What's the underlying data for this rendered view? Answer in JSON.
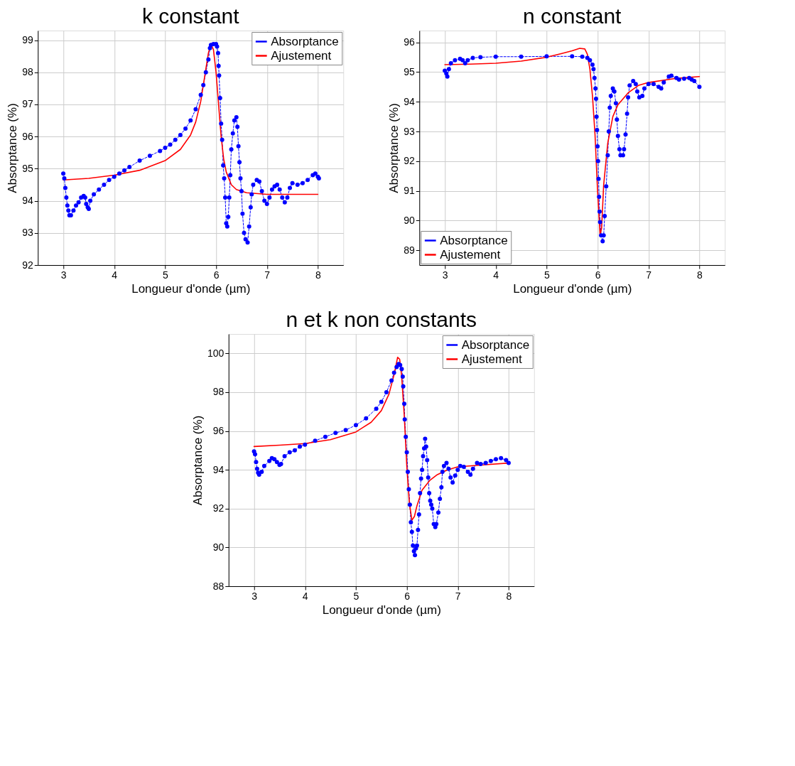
{
  "chart_data": [
    {
      "type": "line",
      "title": "k constant",
      "xlabel": "Longueur d'onde (µm)",
      "ylabel": "Absorptance (%)",
      "xlim": [
        2.5,
        8.5
      ],
      "xticks": [
        3,
        4,
        5,
        6,
        7,
        8
      ],
      "ylim": [
        92,
        99.3
      ],
      "yticks": [
        92,
        93,
        94,
        95,
        96,
        97,
        98,
        99
      ],
      "grid": true,
      "legend": "top right",
      "series": [
        {
          "name": "Absorptance",
          "color": "#0000ff",
          "marker": "circle",
          "line_style": "dashed",
          "x": [
            3.0,
            3.02,
            3.04,
            3.06,
            3.08,
            3.1,
            3.12,
            3.15,
            3.2,
            3.25,
            3.3,
            3.35,
            3.4,
            3.43,
            3.45,
            3.48,
            3.5,
            3.53,
            3.6,
            3.7,
            3.8,
            3.9,
            4.0,
            4.1,
            4.2,
            4.3,
            4.5,
            4.7,
            4.9,
            5.0,
            5.1,
            5.2,
            5.3,
            5.4,
            5.5,
            5.6,
            5.7,
            5.75,
            5.8,
            5.85,
            5.88,
            5.9,
            5.95,
            6.0,
            6.02,
            6.04,
            6.05,
            6.06,
            6.08,
            6.1,
            6.12,
            6.14,
            6.16,
            6.18,
            6.2,
            6.22,
            6.24,
            6.26,
            6.28,
            6.3,
            6.33,
            6.36,
            6.4,
            6.42,
            6.44,
            6.46,
            6.48,
            6.5,
            6.52,
            6.55,
            6.58,
            6.62,
            6.65,
            6.68,
            6.7,
            6.73,
            6.8,
            6.85,
            6.9,
            6.95,
            7.0,
            7.05,
            7.1,
            7.15,
            7.2,
            7.25,
            7.3,
            7.35,
            7.4,
            7.45,
            7.5,
            7.6,
            7.7,
            7.8,
            7.9,
            7.95,
            8.0,
            8.02
          ],
          "values": [
            94.85,
            94.7,
            94.4,
            94.1,
            93.85,
            93.7,
            93.55,
            93.55,
            93.7,
            93.85,
            93.95,
            94.1,
            94.15,
            94.1,
            93.9,
            93.8,
            93.75,
            94.0,
            94.2,
            94.35,
            94.5,
            94.65,
            94.75,
            94.85,
            94.95,
            95.05,
            95.25,
            95.4,
            95.55,
            95.65,
            95.75,
            95.9,
            96.05,
            96.25,
            96.5,
            96.85,
            97.3,
            97.6,
            98.0,
            98.4,
            98.75,
            98.85,
            98.88,
            98.88,
            98.8,
            98.6,
            98.2,
            97.9,
            97.2,
            96.4,
            95.9,
            95.1,
            94.7,
            94.1,
            93.3,
            93.2,
            93.5,
            94.1,
            94.8,
            95.6,
            96.1,
            96.5,
            96.6,
            96.3,
            95.7,
            95.2,
            94.7,
            94.3,
            93.6,
            93.0,
            92.8,
            92.7,
            93.2,
            93.8,
            94.2,
            94.5,
            94.65,
            94.6,
            94.3,
            94.0,
            93.9,
            94.1,
            94.35,
            94.45,
            94.5,
            94.35,
            94.1,
            93.95,
            94.1,
            94.4,
            94.55,
            94.5,
            94.55,
            94.65,
            94.8,
            94.85,
            94.75,
            94.7
          ]
        },
        {
          "name": "Ajustement",
          "color": "#ff0000",
          "marker": "none",
          "line_style": "solid",
          "x": [
            3,
            3.5,
            4,
            4.5,
            5,
            5.3,
            5.5,
            5.6,
            5.7,
            5.8,
            5.85,
            5.9,
            5.95,
            6.0,
            6.05,
            6.1,
            6.15,
            6.2,
            6.3,
            6.4,
            6.6,
            7.0,
            7.5,
            8.0
          ],
          "values": [
            94.65,
            94.7,
            94.8,
            94.95,
            95.25,
            95.6,
            96.05,
            96.45,
            97.1,
            98.1,
            98.6,
            98.88,
            98.7,
            98.0,
            97.0,
            96.0,
            95.3,
            94.9,
            94.5,
            94.35,
            94.25,
            94.2,
            94.2,
            94.2
          ]
        }
      ]
    },
    {
      "type": "line",
      "title": "n constant",
      "xlabel": "Longueur d'onde (µm)",
      "ylabel": "Absorptance (%)",
      "xlim": [
        2.5,
        8.5
      ],
      "xticks": [
        3,
        4,
        5,
        6,
        7,
        8
      ],
      "ylim": [
        88.5,
        96.4
      ],
      "yticks": [
        89,
        90,
        91,
        92,
        93,
        94,
        95,
        96
      ],
      "grid": true,
      "legend": "bottom left",
      "series": [
        {
          "name": "Absorptance",
          "color": "#0000ff",
          "marker": "circle",
          "line_style": "dashed",
          "x": [
            3.0,
            3.03,
            3.05,
            3.08,
            3.12,
            3.2,
            3.3,
            3.35,
            3.4,
            3.45,
            3.55,
            3.7,
            4,
            4.5,
            5,
            5.5,
            5.7,
            5.8,
            5.85,
            5.9,
            5.92,
            5.94,
            5.96,
            5.97,
            5.98,
            5.99,
            6.0,
            6.01,
            6.02,
            6.03,
            6.04,
            6.05,
            6.07,
            6.1,
            6.12,
            6.14,
            6.17,
            6.2,
            6.22,
            6.24,
            6.26,
            6.3,
            6.33,
            6.36,
            6.38,
            6.4,
            6.43,
            6.45,
            6.5,
            6.52,
            6.55,
            6.58,
            6.6,
            6.63,
            6.7,
            6.75,
            6.78,
            6.82,
            6.88,
            6.92,
            7.0,
            7.1,
            7.2,
            7.25,
            7.3,
            7.4,
            7.45,
            7.55,
            7.6,
            7.7,
            7.8,
            7.85,
            7.9,
            8.0
          ],
          "values": [
            95.05,
            94.95,
            94.85,
            95.1,
            95.3,
            95.4,
            95.45,
            95.4,
            95.3,
            95.4,
            95.48,
            95.5,
            95.52,
            95.52,
            95.53,
            95.53,
            95.52,
            95.48,
            95.4,
            95.25,
            95.1,
            94.8,
            94.45,
            94.1,
            93.5,
            93.05,
            92.5,
            92.0,
            91.4,
            90.8,
            90.3,
            89.95,
            89.5,
            89.3,
            89.5,
            90.15,
            91.15,
            92.2,
            93.0,
            93.8,
            94.2,
            94.45,
            94.35,
            93.95,
            93.4,
            92.85,
            92.4,
            92.2,
            92.2,
            92.4,
            92.9,
            93.6,
            94.15,
            94.55,
            94.7,
            94.6,
            94.35,
            94.15,
            94.2,
            94.45,
            94.6,
            94.6,
            94.5,
            94.45,
            94.65,
            94.85,
            94.88,
            94.8,
            94.75,
            94.78,
            94.8,
            94.75,
            94.7,
            94.5
          ]
        },
        {
          "name": "Ajustement",
          "color": "#ff0000",
          "marker": "none",
          "line_style": "solid",
          "x": [
            3,
            3.5,
            4,
            4.5,
            5,
            5.3,
            5.5,
            5.65,
            5.75,
            5.8,
            5.85,
            5.9,
            5.95,
            6.0,
            6.05,
            6.08,
            6.12,
            6.2,
            6.3,
            6.4,
            6.6,
            6.8,
            7.0,
            7.5,
            8.0
          ],
          "values": [
            95.25,
            95.27,
            95.3,
            95.37,
            95.5,
            95.63,
            95.72,
            95.8,
            95.78,
            95.6,
            95.1,
            94.2,
            92.9,
            91.0,
            89.5,
            89.75,
            91.2,
            92.6,
            93.5,
            93.9,
            94.3,
            94.55,
            94.65,
            94.78,
            94.85
          ]
        }
      ]
    },
    {
      "type": "line",
      "title": "n et k non constants",
      "xlabel": "Longueur d'onde (µm)",
      "ylabel": "Absorptance (%)",
      "xlim": [
        2.5,
        8.5
      ],
      "xticks": [
        3,
        4,
        5,
        6,
        7,
        8
      ],
      "ylim": [
        88,
        101
      ],
      "yticks": [
        88,
        90,
        92,
        94,
        96,
        98,
        100
      ],
      "grid": true,
      "legend": "top right",
      "series": [
        {
          "name": "Absorptance",
          "color": "#0000ff",
          "marker": "circle",
          "line_style": "dashed",
          "x": [
            3.0,
            3.02,
            3.04,
            3.06,
            3.08,
            3.1,
            3.15,
            3.2,
            3.3,
            3.35,
            3.4,
            3.45,
            3.5,
            3.53,
            3.6,
            3.7,
            3.8,
            3.9,
            4.0,
            4.2,
            4.4,
            4.6,
            4.8,
            5.0,
            5.2,
            5.4,
            5.5,
            5.6,
            5.7,
            5.75,
            5.8,
            5.84,
            5.87,
            5.9,
            5.92,
            5.93,
            5.95,
            5.96,
            5.98,
            6.0,
            6.02,
            6.04,
            6.06,
            6.08,
            6.1,
            6.12,
            6.14,
            6.16,
            6.18,
            6.2,
            6.22,
            6.24,
            6.26,
            6.28,
            6.3,
            6.32,
            6.34,
            6.36,
            6.38,
            6.4,
            6.42,
            6.44,
            6.46,
            6.48,
            6.5,
            6.53,
            6.56,
            6.58,
            6.62,
            6.65,
            6.68,
            6.7,
            6.73,
            6.78,
            6.82,
            6.86,
            6.9,
            6.95,
            7.0,
            7.05,
            7.12,
            7.2,
            7.25,
            7.3,
            7.38,
            7.45,
            7.55,
            7.65,
            7.75,
            7.85,
            7.95,
            8.0
          ],
          "values": [
            94.95,
            94.8,
            94.4,
            94.05,
            93.85,
            93.75,
            93.9,
            94.2,
            94.45,
            94.6,
            94.55,
            94.4,
            94.25,
            94.3,
            94.7,
            94.9,
            95.0,
            95.2,
            95.3,
            95.5,
            95.7,
            95.9,
            96.05,
            96.3,
            96.65,
            97.15,
            97.5,
            98.0,
            98.6,
            99.0,
            99.3,
            99.45,
            99.4,
            99.2,
            98.8,
            98.3,
            97.4,
            96.6,
            95.7,
            94.9,
            93.9,
            93.0,
            92.2,
            91.3,
            90.8,
            90.1,
            89.8,
            89.6,
            89.95,
            90.1,
            90.9,
            91.7,
            92.8,
            93.55,
            94.0,
            94.7,
            95.1,
            95.6,
            95.2,
            94.5,
            93.6,
            92.8,
            92.4,
            92.2,
            92.0,
            91.2,
            91.05,
            91.2,
            91.8,
            92.5,
            93.1,
            93.9,
            94.2,
            94.35,
            94.05,
            93.6,
            93.35,
            93.7,
            94.0,
            94.2,
            94.15,
            93.9,
            93.75,
            94.05,
            94.35,
            94.3,
            94.35,
            94.45,
            94.55,
            94.6,
            94.5,
            94.35
          ]
        },
        {
          "name": "Ajustement",
          "color": "#ff0000",
          "marker": "none",
          "line_style": "solid",
          "x": [
            3,
            3.5,
            4,
            4.5,
            5,
            5.3,
            5.5,
            5.65,
            5.75,
            5.82,
            5.86,
            5.9,
            5.95,
            6.0,
            6.05,
            6.1,
            6.15,
            6.2,
            6.3,
            6.45,
            6.6,
            6.8,
            7.0,
            7.5,
            8.0
          ],
          "values": [
            95.2,
            95.27,
            95.35,
            95.55,
            95.95,
            96.45,
            97.05,
            97.9,
            98.9,
            99.8,
            99.7,
            98.8,
            96.8,
            94.2,
            92.3,
            91.4,
            91.6,
            92.15,
            92.95,
            93.45,
            93.75,
            94.0,
            94.15,
            94.25,
            94.35
          ]
        }
      ]
    }
  ]
}
